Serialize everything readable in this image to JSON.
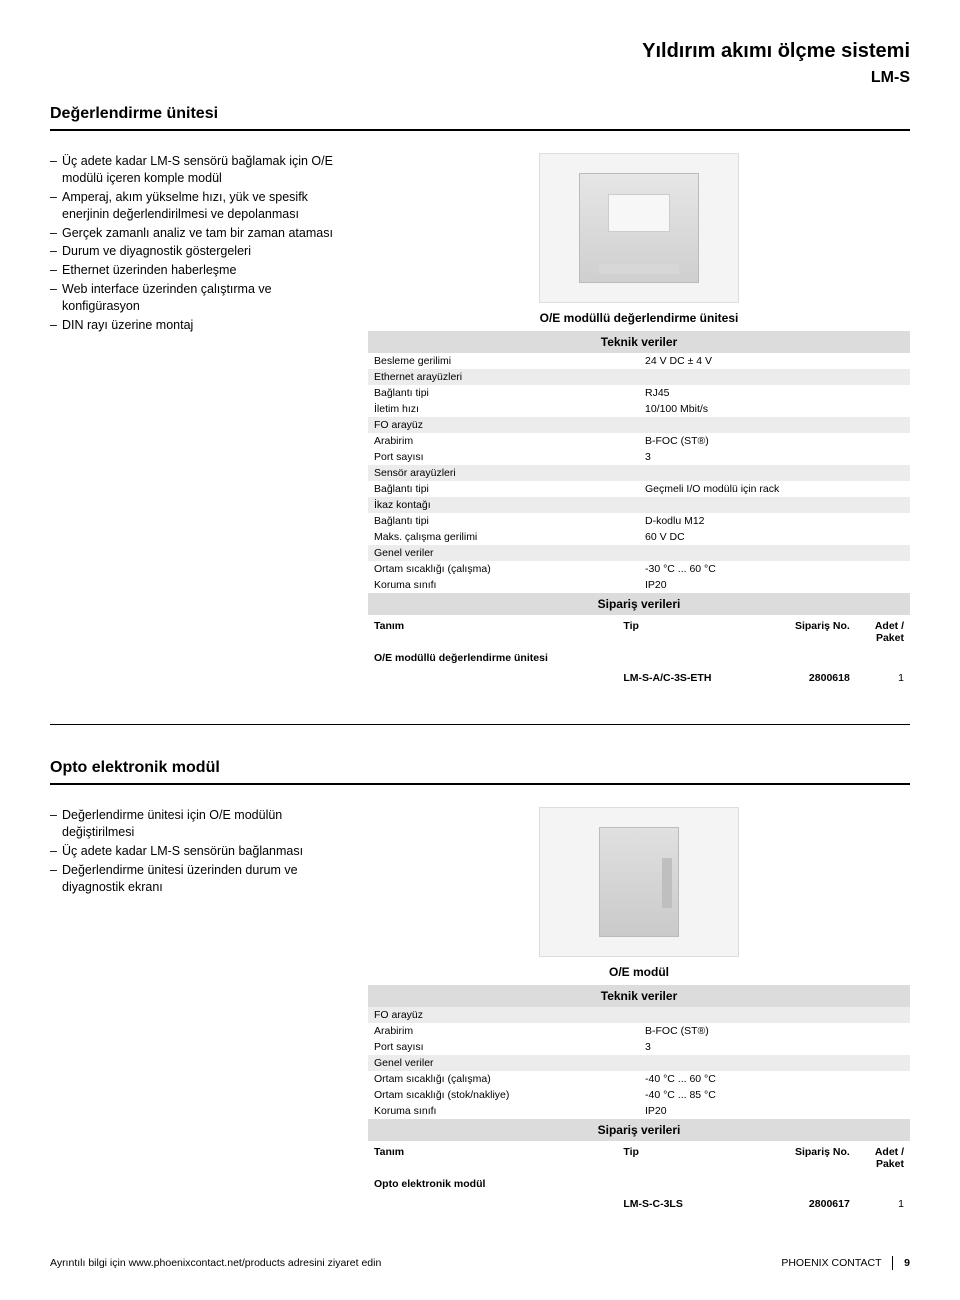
{
  "doc": {
    "title": "Yıldırım akımı ölçme sistemi",
    "subtitle": "LM-S"
  },
  "sec1": {
    "title": "Değerlendirme ünitesi",
    "bullets": [
      "Üç adete kadar LM-S sensörü bağlamak için O/E modülü içeren komple modül",
      "Amperaj, akım yükselme hızı, yük ve spesifk enerjinin değerlendirilmesi ve depolanması",
      "Gerçek zamanlı analiz ve tam bir zaman ataması",
      "Durum ve diyagnostik göstergeleri",
      "Ethernet üzerinden haberleşme",
      "Web interface üzerinden çalıştırma ve konfigürasyon",
      "DIN rayı üzerine montaj"
    ],
    "caption": "O/E modüllü değerlendirme ünitesi",
    "tech_header": "Teknik veriler",
    "tech": [
      {
        "lbl": "Besleme gerilimi",
        "val": "24 V DC ± 4 V"
      },
      {
        "section": true,
        "lbl": "Ethernet arayüzleri"
      },
      {
        "lbl": "Bağlantı tipi",
        "val": "RJ45"
      },
      {
        "lbl": "İletim hızı",
        "val": "10/100 Mbit/s"
      },
      {
        "section": true,
        "lbl": "FO arayüz"
      },
      {
        "lbl": "Arabirim",
        "val": "B-FOC (ST®)"
      },
      {
        "lbl": "Port sayısı",
        "val": "3"
      },
      {
        "section": true,
        "lbl": "Sensör arayüzleri"
      },
      {
        "lbl": "Bağlantı tipi",
        "val": "Geçmeli I/O modülü için rack"
      },
      {
        "section": true,
        "lbl": "İkaz kontağı"
      },
      {
        "lbl": "Bağlantı tipi",
        "val": "D-kodlu M12"
      },
      {
        "lbl": "Maks. çalışma gerilimi",
        "val": "60 V DC"
      },
      {
        "section": true,
        "lbl": "Genel veriler"
      },
      {
        "lbl": "Ortam sıcaklığı (çalışma)",
        "val": "-30 °C ... 60 °C"
      },
      {
        "lbl": "Koruma sınıfı",
        "val": "IP20"
      }
    ],
    "order_header": "Sipariş verileri",
    "order_head": {
      "tanim": "Tanım",
      "tip": "Tip",
      "sip": "Sipariş No.",
      "adet": "Adet / Paket"
    },
    "order_desc": "O/E modüllü değerlendirme ünitesi",
    "order": {
      "tip": "LM-S-A/C-3S-ETH",
      "sip": "2800618",
      "adet": "1"
    }
  },
  "sec2": {
    "title": "Opto elektronik modül",
    "bullets": [
      "Değerlendirme ünitesi için O/E modülün değiştirilmesi",
      "Üç adete kadar LM-S sensörün bağlanması",
      "Değerlendirme ünitesi üzerinden durum ve diyagnostik ekranı"
    ],
    "caption": "O/E modül",
    "tech_header": "Teknik veriler",
    "tech": [
      {
        "section": true,
        "lbl": "FO arayüz"
      },
      {
        "lbl": "Arabirim",
        "val": "B-FOC (ST®)"
      },
      {
        "lbl": "Port sayısı",
        "val": "3"
      },
      {
        "section": true,
        "lbl": "Genel veriler"
      },
      {
        "lbl": "Ortam sıcaklığı (çalışma)",
        "val": "-40 °C ... 60 °C"
      },
      {
        "lbl": "Ortam sıcaklığı (stok/nakliye)",
        "val": "-40 °C ... 85 °C"
      },
      {
        "lbl": "Koruma sınıfı",
        "val": "IP20"
      }
    ],
    "order_header": "Sipariş verileri",
    "order_desc": "Opto elektronik modül",
    "order": {
      "tip": "LM-S-C-3LS",
      "sip": "2800617",
      "adet": "1"
    }
  },
  "footer": {
    "link": "Ayrıntılı bilgi için www.phoenixcontact.net/products adresini ziyaret edin",
    "brand": "PHOENIX CONTACT",
    "page": "9"
  }
}
